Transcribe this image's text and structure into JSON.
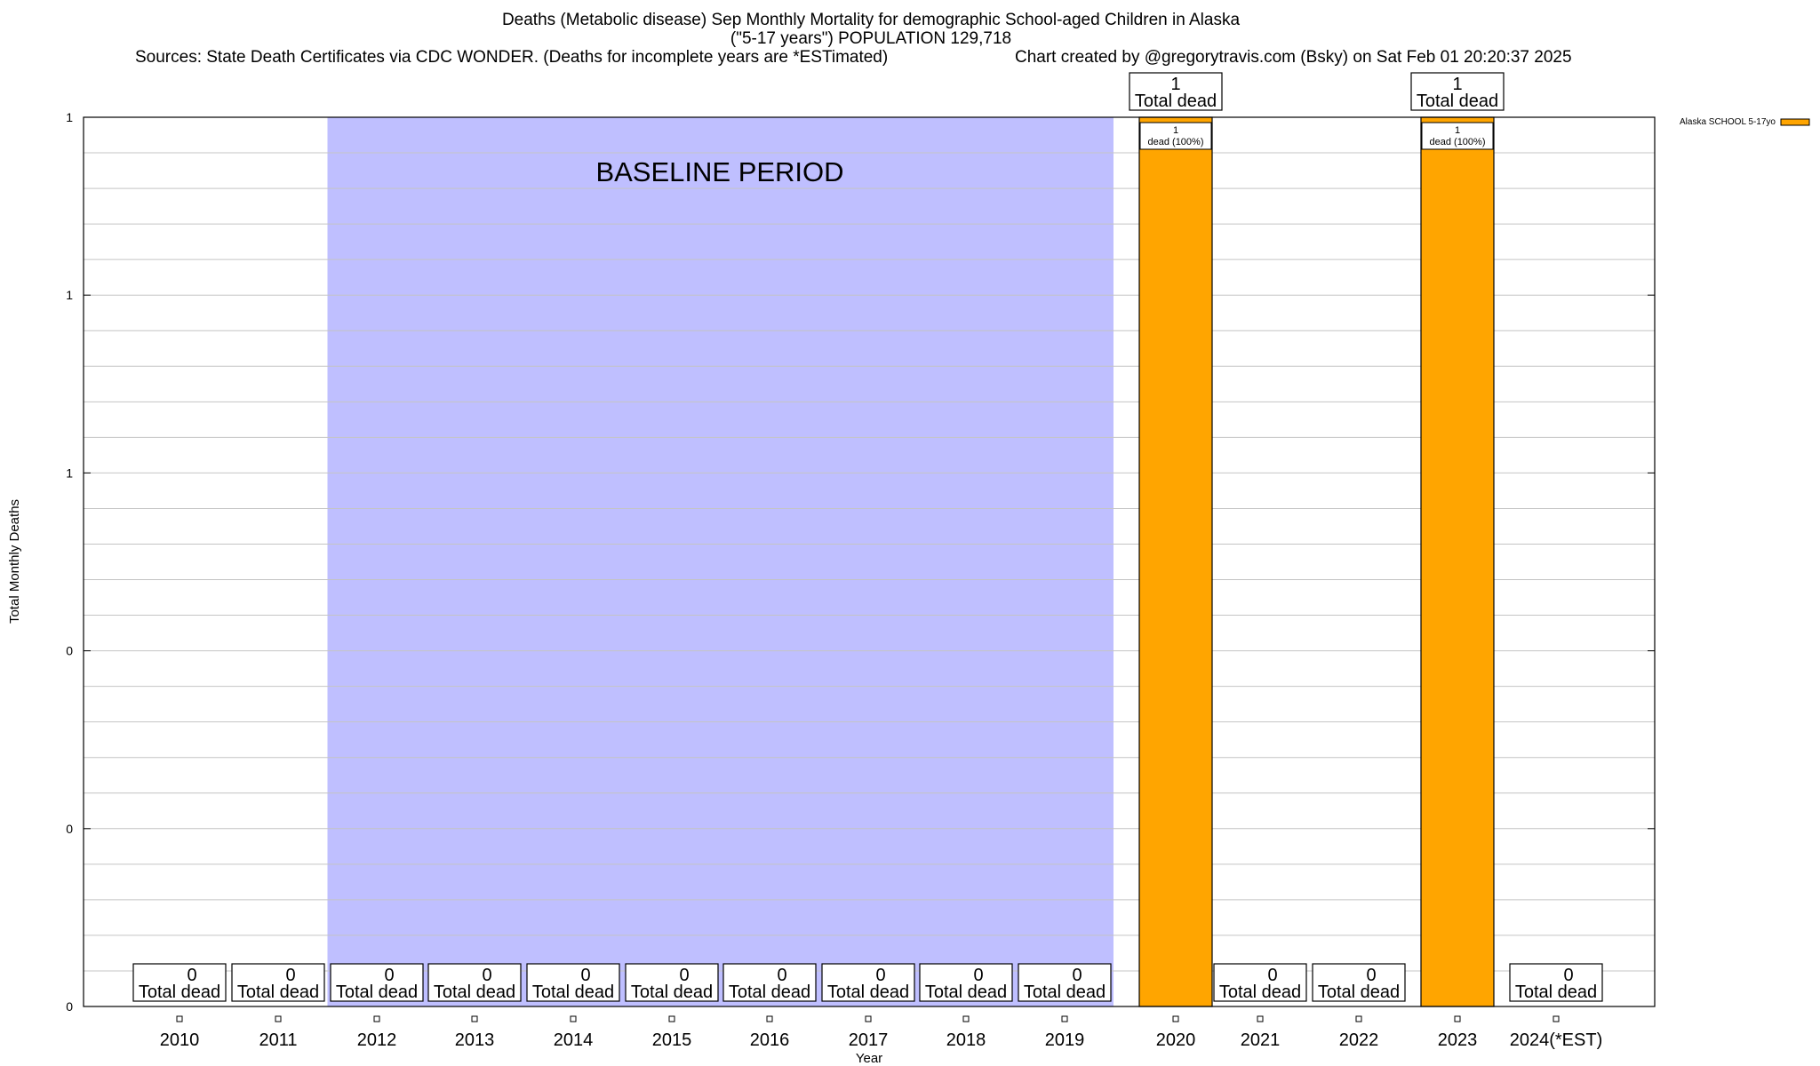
{
  "header": {
    "title_line1": "Deaths (Metabolic disease) Sep Monthly Mortality for demographic School-aged Children in Alaska",
    "title_line2": "(\"5-17 years\") POPULATION 129,718",
    "sources": "Sources: State Death Certificates via CDC WONDER. (Deaths for incomplete years are *ESTimated)",
    "credit": "Chart created by @gregorytravis.com (Bsky) on Sat Feb 01 20:20:37 2025"
  },
  "chart_data": {
    "type": "bar",
    "xlabel": "Year",
    "ylabel": "Total Monthly Deaths",
    "categories": [
      "2010",
      "2011",
      "2012",
      "2013",
      "2014",
      "2015",
      "2016",
      "2017",
      "2018",
      "2019",
      "2020",
      "2021",
      "2022",
      "2023",
      "2024(*EST)"
    ],
    "series": [
      {
        "name": "Alaska SCHOOL 5-17yo",
        "values": [
          0,
          0,
          0,
          0,
          0,
          0,
          0,
          0,
          0,
          0,
          1,
          0,
          0,
          1,
          0
        ],
        "color": "#FFA500"
      }
    ],
    "ylim": [
      0,
      1
    ],
    "yticks": [
      0,
      0.2,
      0.4,
      0.6,
      0.8,
      1
    ],
    "ytick_labels": [
      "0",
      "0",
      "0",
      "1",
      "1",
      "1"
    ],
    "total_label_word": "Total dead",
    "inner_labels": {
      "10": "1\ndead (100%)",
      "13": "1\ndead (100%)"
    },
    "baseline": {
      "label": "BASELINE PERIOD",
      "from": "2012",
      "to": "2019",
      "color": "#BFBFFF"
    },
    "grid": true,
    "legend_position": "top-right"
  }
}
